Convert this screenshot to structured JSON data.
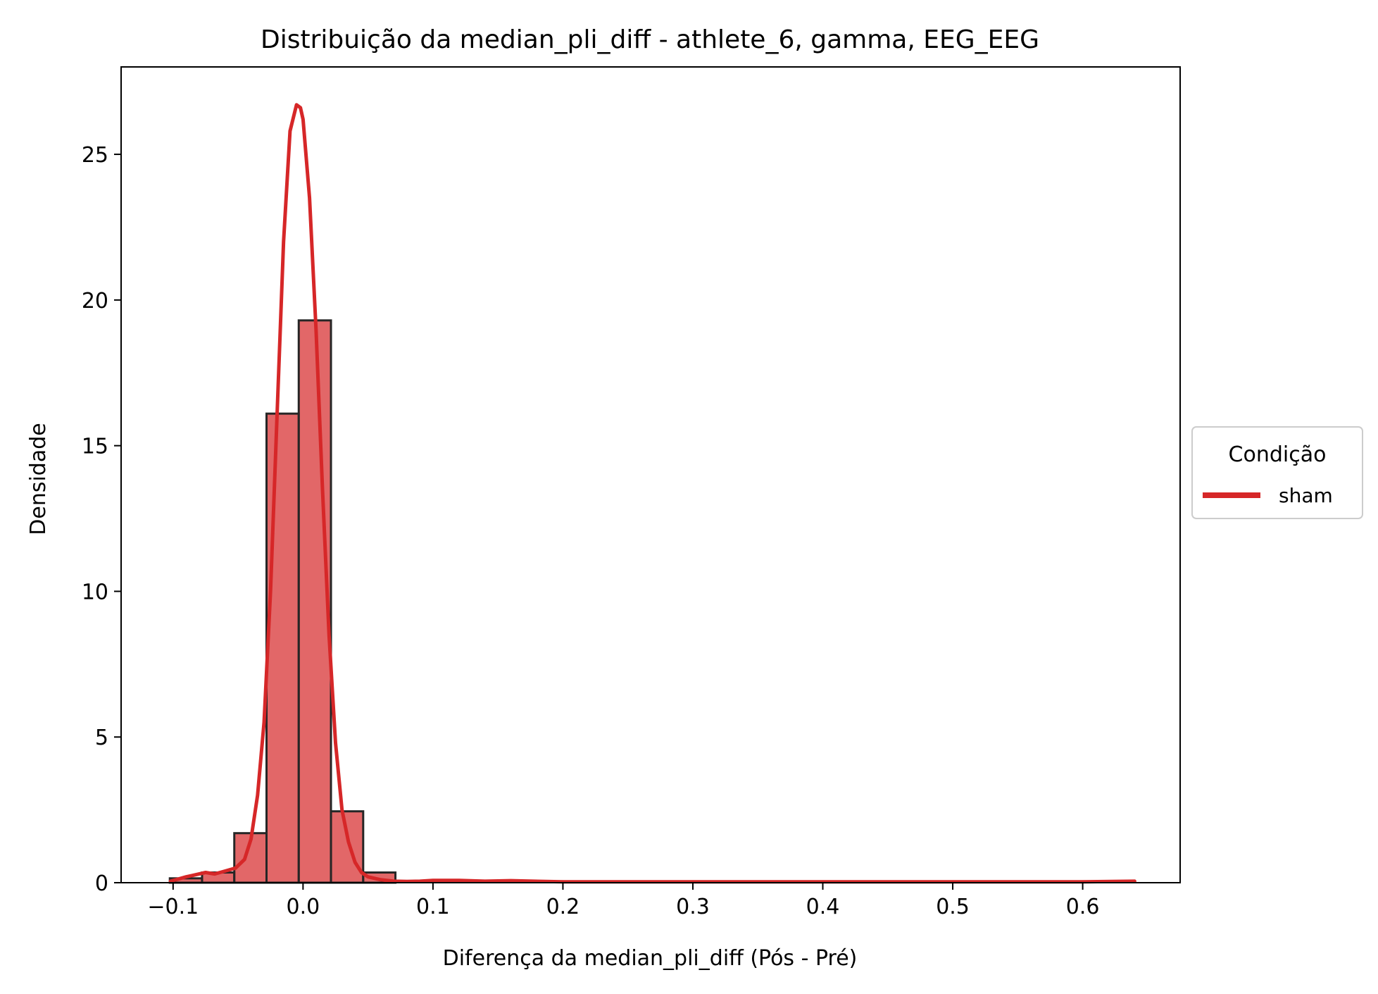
{
  "chart_data": {
    "type": "bar",
    "title": "Distribuição da median_pli_diff - athlete_6, gamma, EEG_EEG",
    "xlabel": "Diferença da median_pli_diff (Pós - Pré)",
    "ylabel": "Densidade",
    "xlim": [
      -0.14,
      0.675
    ],
    "ylim": [
      0,
      28
    ],
    "x_ticks": [
      {
        "value": -0.1,
        "label": "−0.1"
      },
      {
        "value": 0.0,
        "label": "0.0"
      },
      {
        "value": 0.1,
        "label": "0.1"
      },
      {
        "value": 0.2,
        "label": "0.2"
      },
      {
        "value": 0.3,
        "label": "0.3"
      },
      {
        "value": 0.4,
        "label": "0.4"
      },
      {
        "value": 0.5,
        "label": "0.5"
      },
      {
        "value": 0.6,
        "label": "0.6"
      }
    ],
    "y_ticks": [
      {
        "value": 0,
        "label": "0"
      },
      {
        "value": 5,
        "label": "5"
      },
      {
        "value": 10,
        "label": "10"
      },
      {
        "value": 15,
        "label": "15"
      },
      {
        "value": 20,
        "label": "20"
      },
      {
        "value": 25,
        "label": "25"
      }
    ],
    "histogram": {
      "bin_edges": [
        -0.1025,
        -0.0777,
        -0.0529,
        -0.0281,
        -0.0033,
        0.0215,
        0.0463,
        0.0711
      ],
      "values": [
        0.15,
        0.35,
        1.7,
        16.1,
        19.3,
        2.45,
        0.35
      ],
      "fill_color": "#d62728",
      "edge_color": "#262626"
    },
    "series": [
      {
        "name": "sham",
        "type": "kde",
        "color": "#d62728",
        "x": [
          -0.102,
          -0.09,
          -0.085,
          -0.075,
          -0.068,
          -0.06,
          -0.052,
          -0.045,
          -0.04,
          -0.035,
          -0.03,
          -0.025,
          -0.02,
          -0.015,
          -0.01,
          -0.005,
          -0.002,
          0.0,
          0.005,
          0.01,
          0.015,
          0.02,
          0.025,
          0.03,
          0.035,
          0.04,
          0.045,
          0.05,
          0.06,
          0.07,
          0.08,
          0.09,
          0.1,
          0.12,
          0.14,
          0.16,
          0.2,
          0.3,
          0.4,
          0.5,
          0.6,
          0.64
        ],
        "y": [
          0.05,
          0.2,
          0.25,
          0.35,
          0.3,
          0.4,
          0.5,
          0.8,
          1.5,
          3.0,
          5.5,
          10.0,
          16.0,
          22.0,
          25.8,
          26.7,
          26.6,
          26.2,
          23.5,
          19.0,
          13.5,
          8.5,
          4.8,
          2.5,
          1.4,
          0.7,
          0.35,
          0.2,
          0.1,
          0.05,
          0.04,
          0.05,
          0.08,
          0.08,
          0.05,
          0.07,
          0.03,
          0.03,
          0.03,
          0.03,
          0.03,
          0.05
        ]
      }
    ],
    "legend": {
      "title": "Condição",
      "placement": "center-right-outside",
      "entries": [
        {
          "label": "sham",
          "color": "#d62728"
        }
      ]
    },
    "grid": false
  }
}
